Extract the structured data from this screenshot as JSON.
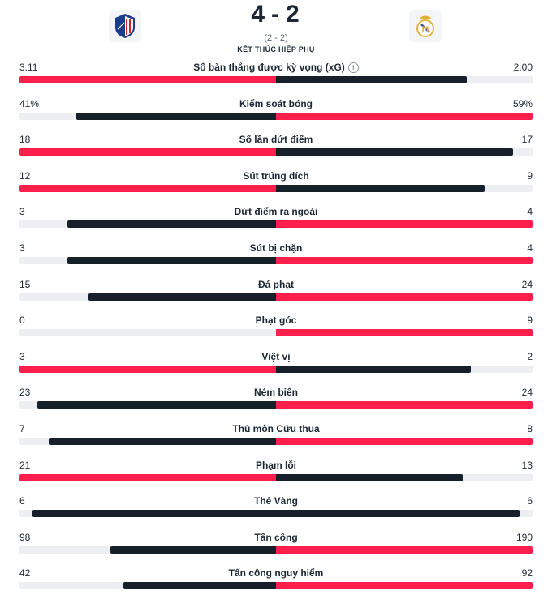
{
  "match": {
    "score_home": "4",
    "score_away": "2",
    "score_separator": "-",
    "sub_score": "(2 - 2)",
    "status": "KẾT THÚC HIỆP PHỤ"
  },
  "colors": {
    "leader": "#ff1f4d",
    "trailer": "#15202b",
    "track": "#eceef1"
  },
  "stats": [
    {
      "name": "Số bàn thắng được kỳ vọng (xG)",
      "home": "3.11",
      "away": "2.00",
      "home_num": 3.11,
      "away_num": 2.0,
      "info": true
    },
    {
      "name": "Kiểm soát bóng",
      "home": "41%",
      "away": "59%",
      "home_num": 41,
      "away_num": 59
    },
    {
      "name": "Số lần dứt điểm",
      "home": "18",
      "away": "17",
      "home_num": 18,
      "away_num": 17
    },
    {
      "name": "Sút trúng đích",
      "home": "12",
      "away": "9",
      "home_num": 12,
      "away_num": 9
    },
    {
      "name": "Dứt điểm ra ngoài",
      "home": "3",
      "away": "4",
      "home_num": 3,
      "away_num": 4
    },
    {
      "name": "Sút bị chặn",
      "home": "3",
      "away": "4",
      "home_num": 3,
      "away_num": 4
    },
    {
      "name": "Đá phạt",
      "home": "15",
      "away": "24",
      "home_num": 15,
      "away_num": 24
    },
    {
      "name": "Phạt góc",
      "home": "0",
      "away": "9",
      "home_num": 0,
      "away_num": 9
    },
    {
      "name": "Việt vị",
      "home": "3",
      "away": "2",
      "home_num": 3,
      "away_num": 2
    },
    {
      "name": "Ném biên",
      "home": "23",
      "away": "24",
      "home_num": 23,
      "away_num": 24
    },
    {
      "name": "Thủ môn Cứu thua",
      "home": "7",
      "away": "8",
      "home_num": 7,
      "away_num": 8
    },
    {
      "name": "Phạm lỗi",
      "home": "21",
      "away": "13",
      "home_num": 21,
      "away_num": 13
    },
    {
      "name": "Thẻ Vàng",
      "home": "6",
      "away": "6",
      "home_num": 6,
      "away_num": 6
    },
    {
      "name": "Tấn công",
      "home": "98",
      "away": "190",
      "home_num": 98,
      "away_num": 190
    },
    {
      "name": "Tấn công nguy hiểm",
      "home": "42",
      "away": "92",
      "home_num": 42,
      "away_num": 92
    }
  ]
}
